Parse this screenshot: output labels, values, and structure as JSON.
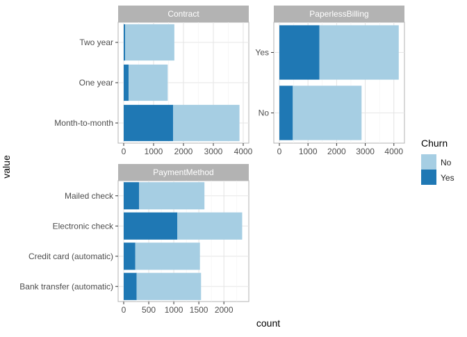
{
  "chart_data": {
    "type": "bar",
    "orientation": "horizontal",
    "stacked": true,
    "xlabel": "count",
    "ylabel": "value",
    "legend": {
      "title": "Churn",
      "position": "right",
      "entries": [
        {
          "name": "No",
          "color": "#a6cee3"
        },
        {
          "name": "Yes",
          "color": "#1f78b4"
        }
      ]
    },
    "grid": true,
    "panels": [
      {
        "title": "Contract",
        "categories": [
          "Month-to-month",
          "One year",
          "Two year"
        ],
        "xlim": [
          0,
          4000
        ],
        "xticks": [
          0,
          1000,
          2000,
          3000,
          4000
        ],
        "series": [
          {
            "name": "Yes",
            "values": [
              1655,
              166,
              48
            ]
          },
          {
            "name": "No",
            "values": [
              2220,
              1307,
              1647
            ]
          }
        ]
      },
      {
        "title": "PaperlessBilling",
        "categories": [
          "No",
          "Yes"
        ],
        "xlim": [
          0,
          4200
        ],
        "xticks": [
          0,
          1000,
          2000,
          3000,
          4000
        ],
        "series": [
          {
            "name": "Yes",
            "values": [
              469,
              1400
            ]
          },
          {
            "name": "No",
            "values": [
              2403,
              2771
            ]
          }
        ]
      },
      {
        "title": "PaymentMethod",
        "categories": [
          "Bank transfer (automatic)",
          "Credit card (automatic)",
          "Electronic check",
          "Mailed check"
        ],
        "xlim": [
          0,
          2400
        ],
        "xticks": [
          0,
          500,
          1000,
          1500,
          2000
        ],
        "series": [
          {
            "name": "Yes",
            "values": [
              258,
              232,
              1071,
              308
            ]
          },
          {
            "name": "No",
            "values": [
              1286,
              1290,
              1294,
              1304
            ]
          }
        ]
      }
    ]
  }
}
